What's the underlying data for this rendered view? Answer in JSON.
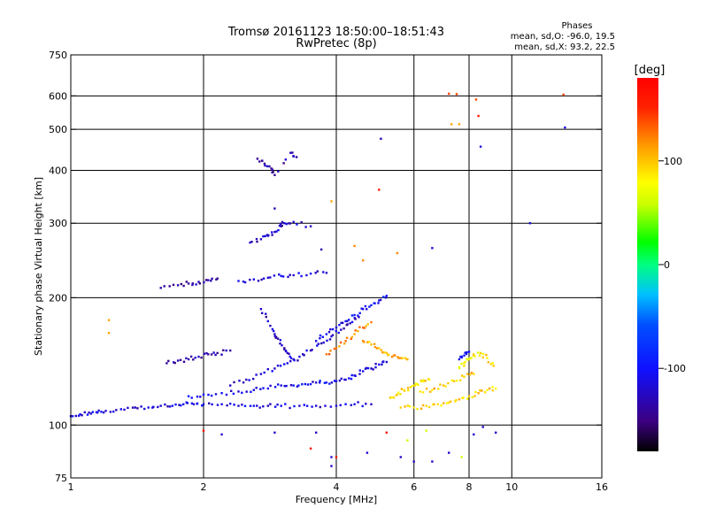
{
  "chart_data": {
    "type": "scatter",
    "title": "Tromsø 20161123 18:50:00–18:51:43",
    "subtitle": "RwPretec (8p)",
    "xlabel": "Frequency [MHz]",
    "ylabel": "Stationary phase Virtual Height [km]",
    "x_scale": "log",
    "y_scale": "log",
    "xlim": [
      1,
      16
    ],
    "ylim": [
      75,
      750
    ],
    "x_ticks": [
      1,
      2,
      4,
      6,
      8,
      10,
      16
    ],
    "x_tick_labels": [
      "1",
      "2",
      "4",
      "6",
      "8",
      "10",
      "16"
    ],
    "y_ticks": [
      75,
      100,
      200,
      300,
      400,
      500,
      600,
      750
    ],
    "y_tick_labels": [
      "75",
      "100",
      "200",
      "300",
      "400",
      "500",
      "600",
      "750"
    ],
    "grid": true,
    "colorbar": {
      "label": "[deg]",
      "range": [
        -180,
        180
      ],
      "ticks": [
        100,
        0,
        -100
      ],
      "tick_labels": [
        "100",
        "0",
        "-100"
      ]
    },
    "annotation": {
      "heading": "Phases",
      "line_o": "mean, sd,O: -96.0, 19.5",
      "line_x": "mean, sd,X:  93.2, 22.5"
    },
    "traces": [
      {
        "phase": -115,
        "points": [
          [
            1.0,
            105
          ],
          [
            1.05,
            106
          ],
          [
            1.1,
            107
          ],
          [
            1.15,
            107
          ],
          [
            1.2,
            108
          ],
          [
            1.3,
            109
          ],
          [
            1.4,
            110
          ],
          [
            1.5,
            110
          ],
          [
            1.6,
            111
          ],
          [
            1.7,
            111
          ],
          [
            1.8,
            112
          ],
          [
            1.9,
            112
          ],
          [
            2.0,
            112
          ],
          [
            2.2,
            112
          ],
          [
            2.4,
            111
          ],
          [
            2.6,
            111
          ],
          [
            2.8,
            111
          ],
          [
            3.0,
            111
          ],
          [
            3.3,
            111
          ],
          [
            3.6,
            111
          ],
          [
            4.0,
            111
          ],
          [
            4.4,
            112
          ],
          [
            4.8,
            112
          ]
        ]
      },
      {
        "phase": -110,
        "points": [
          [
            1.85,
            117
          ],
          [
            2.0,
            118
          ],
          [
            2.2,
            119
          ],
          [
            2.4,
            120
          ],
          [
            2.6,
            121
          ],
          [
            2.8,
            122
          ],
          [
            3.0,
            124
          ],
          [
            3.2,
            124
          ],
          [
            3.4,
            125
          ],
          [
            3.6,
            126
          ],
          [
            3.8,
            126
          ],
          [
            4.0,
            127
          ],
          [
            4.2,
            128
          ],
          [
            4.4,
            131
          ],
          [
            4.6,
            134
          ],
          [
            4.8,
            136
          ],
          [
            5.0,
            139
          ],
          [
            5.2,
            141
          ]
        ]
      },
      {
        "phase": -120,
        "points": [
          [
            2.3,
            124
          ],
          [
            2.5,
            128
          ],
          [
            2.7,
            132
          ],
          [
            2.9,
            136
          ],
          [
            3.1,
            140
          ],
          [
            3.3,
            145
          ],
          [
            3.5,
            150
          ],
          [
            3.7,
            156
          ],
          [
            3.9,
            162
          ],
          [
            4.1,
            168
          ],
          [
            4.3,
            174
          ],
          [
            4.5,
            180
          ]
        ]
      },
      {
        "phase": -135,
        "points": [
          [
            1.65,
            140
          ],
          [
            1.75,
            142
          ],
          [
            1.85,
            143
          ],
          [
            1.95,
            145
          ],
          [
            2.05,
            147
          ],
          [
            2.15,
            148
          ],
          [
            2.3,
            150
          ]
        ]
      },
      {
        "phase": -140,
        "points": [
          [
            1.6,
            211
          ],
          [
            1.75,
            214
          ],
          [
            1.85,
            216
          ],
          [
            1.95,
            218
          ],
          [
            2.05,
            220
          ],
          [
            2.15,
            222
          ]
        ]
      },
      {
        "phase": -118,
        "points": [
          [
            2.4,
            219
          ],
          [
            2.6,
            221
          ],
          [
            2.8,
            223
          ],
          [
            3.0,
            225
          ],
          [
            3.2,
            226
          ],
          [
            3.5,
            228
          ],
          [
            3.8,
            229
          ]
        ]
      },
      {
        "phase": -125,
        "points": [
          [
            2.7,
            188
          ],
          [
            2.8,
            176
          ],
          [
            2.9,
            164
          ],
          [
            2.95,
            160
          ],
          [
            3.05,
            152
          ],
          [
            3.1,
            148
          ],
          [
            3.2,
            143
          ]
        ]
      },
      {
        "phase": -120,
        "points": [
          [
            2.55,
            270
          ],
          [
            2.7,
            275
          ],
          [
            2.8,
            280
          ],
          [
            2.9,
            286
          ],
          [
            3.0,
            295
          ],
          [
            3.05,
            300
          ],
          [
            3.2,
            302
          ],
          [
            3.5,
            295
          ]
        ]
      },
      {
        "phase": -140,
        "points": [
          [
            2.65,
            426
          ],
          [
            2.75,
            415
          ],
          [
            2.85,
            404
          ],
          [
            2.9,
            390
          ],
          [
            3.15,
            440
          ],
          [
            3.25,
            430
          ]
        ]
      },
      {
        "phase": -105,
        "points": [
          [
            3.6,
            158
          ],
          [
            3.8,
            164
          ],
          [
            4.0,
            170
          ],
          [
            4.2,
            176
          ],
          [
            4.4,
            182
          ],
          [
            4.6,
            188
          ],
          [
            4.8,
            192
          ],
          [
            5.0,
            197
          ],
          [
            5.2,
            202
          ]
        ]
      },
      {
        "phase": 110,
        "points": [
          [
            4.6,
            158
          ],
          [
            4.8,
            155
          ],
          [
            5.0,
            152
          ],
          [
            5.2,
            148
          ],
          [
            5.4,
            146
          ],
          [
            5.6,
            144
          ],
          [
            5.8,
            143
          ]
        ]
      },
      {
        "phase": 90,
        "points": [
          [
            5.3,
            116
          ],
          [
            5.5,
            118
          ],
          [
            5.7,
            121
          ],
          [
            5.9,
            123
          ],
          [
            6.1,
            125
          ],
          [
            6.3,
            127
          ],
          [
            6.5,
            128
          ]
        ]
      },
      {
        "phase": 95,
        "points": [
          [
            5.6,
            110
          ],
          [
            6.0,
            110
          ],
          [
            6.4,
            111
          ],
          [
            6.8,
            112
          ],
          [
            7.2,
            113
          ],
          [
            7.6,
            115
          ],
          [
            8.0,
            117
          ],
          [
            8.4,
            119
          ],
          [
            8.8,
            121
          ],
          [
            9.2,
            122
          ]
        ]
      },
      {
        "phase": 100,
        "points": [
          [
            6.2,
            120
          ],
          [
            6.6,
            121
          ],
          [
            7.0,
            124
          ],
          [
            7.4,
            127
          ],
          [
            7.8,
            130
          ],
          [
            8.2,
            132
          ]
        ]
      },
      {
        "phase": 120,
        "points": [
          [
            3.8,
            147
          ],
          [
            4.0,
            152
          ],
          [
            4.2,
            158
          ],
          [
            4.4,
            164
          ],
          [
            4.6,
            170
          ],
          [
            4.8,
            175
          ]
        ]
      },
      {
        "phase": 85,
        "points": [
          [
            7.6,
            137
          ],
          [
            7.8,
            140
          ],
          [
            8.0,
            143
          ],
          [
            8.2,
            146
          ],
          [
            8.5,
            148
          ],
          [
            8.8,
            144
          ],
          [
            9.1,
            138
          ]
        ]
      },
      {
        "phase": -100,
        "points": [
          [
            7.6,
            143
          ],
          [
            7.8,
            146
          ],
          [
            8.0,
            149
          ]
        ]
      }
    ],
    "scatter": [
      {
        "phase": 140,
        "points": [
          [
            7.2,
            607
          ],
          [
            7.5,
            606
          ],
          [
            8.3,
            588
          ],
          [
            13.1,
            604
          ]
        ]
      },
      {
        "phase": 110,
        "points": [
          [
            7.3,
            514
          ],
          [
            7.6,
            514
          ]
        ]
      },
      {
        "phase": 160,
        "points": [
          [
            8.4,
            538
          ],
          [
            5.0,
            360
          ]
        ]
      },
      {
        "phase": -115,
        "points": [
          [
            8.5,
            455
          ],
          [
            13.2,
            505
          ],
          [
            11.0,
            300
          ],
          [
            6.6,
            262
          ]
        ]
      },
      {
        "phase": -130,
        "points": [
          [
            5.05,
            475
          ],
          [
            3.7,
            260
          ],
          [
            2.9,
            325
          ]
        ]
      },
      {
        "phase": 110,
        "points": [
          [
            1.22,
            177
          ],
          [
            1.22,
            165
          ],
          [
            3.9,
            338
          ]
        ]
      },
      {
        "phase": 120,
        "points": [
          [
            4.4,
            265
          ],
          [
            4.6,
            245
          ],
          [
            5.5,
            255
          ]
        ]
      },
      {
        "phase": -120,
        "points": [
          [
            2.2,
            95
          ],
          [
            2.9,
            96
          ],
          [
            3.6,
            96
          ],
          [
            3.9,
            84
          ],
          [
            3.9,
            80
          ],
          [
            4.7,
            86
          ],
          [
            5.6,
            84
          ],
          [
            6.0,
            82
          ],
          [
            6.6,
            82
          ],
          [
            7.2,
            86
          ],
          [
            8.2,
            95
          ],
          [
            8.6,
            99
          ],
          [
            9.2,
            96
          ]
        ]
      },
      {
        "phase": 165,
        "points": [
          [
            2.0,
            97
          ],
          [
            3.5,
            88
          ],
          [
            5.2,
            96
          ],
          [
            4.0,
            84
          ]
        ]
      },
      {
        "phase": 60,
        "points": [
          [
            7.7,
            84
          ],
          [
            5.8,
            92
          ],
          [
            6.4,
            97
          ]
        ]
      }
    ]
  }
}
